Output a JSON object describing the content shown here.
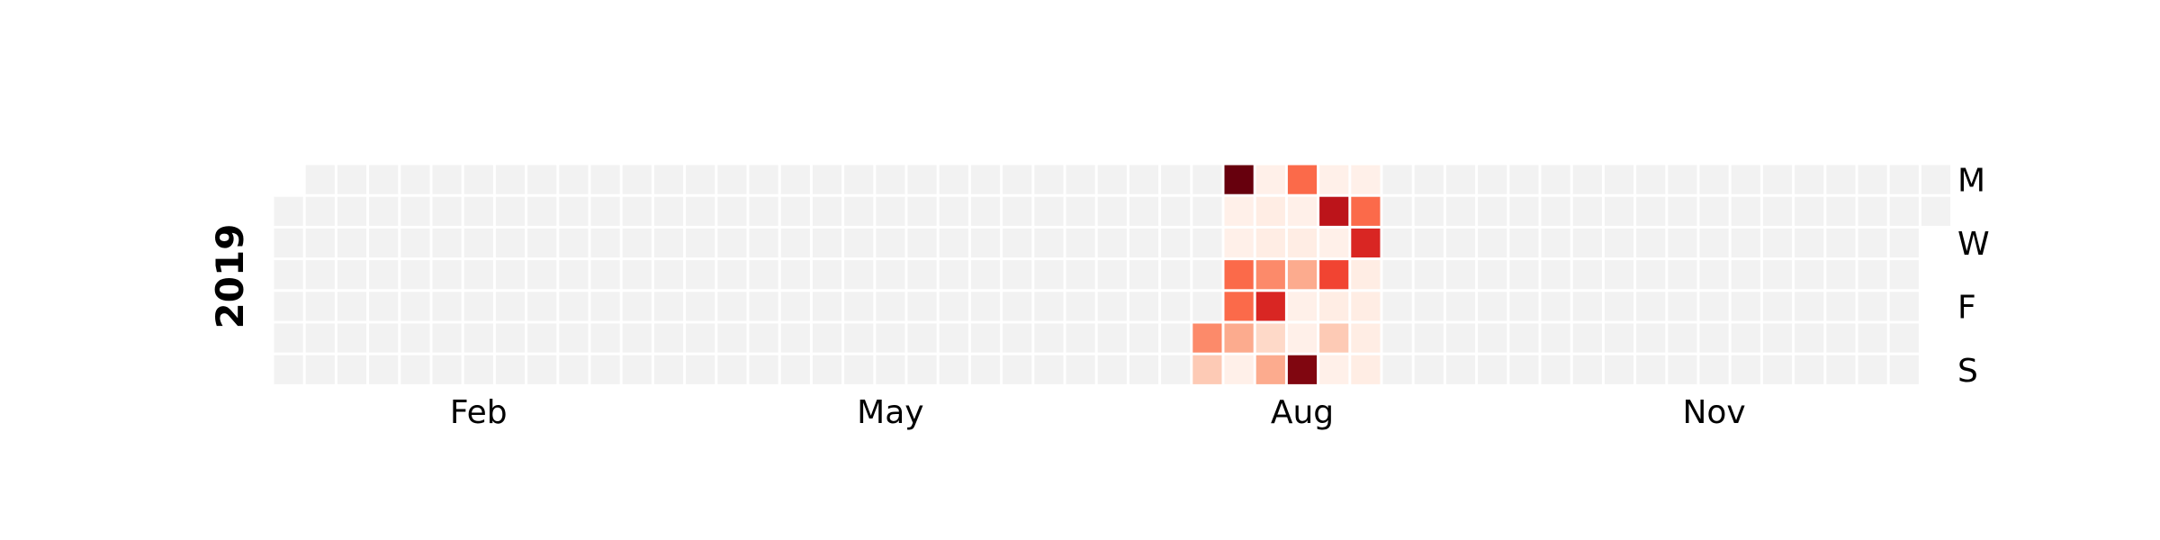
{
  "chart_data": {
    "type": "heatmap",
    "year": "2019",
    "month_labels": [
      "Feb",
      "May",
      "Aug",
      "Nov"
    ],
    "day_labels": [
      "M",
      "W",
      "F",
      "S"
    ],
    "empty_color": "#f2f2f2",
    "colormap": "Reds",
    "grid": false,
    "legend": "none",
    "values": [
      {
        "date": "2019-07-27",
        "value": 4
      },
      {
        "date": "2019-07-28",
        "value": 2
      },
      {
        "date": "2019-07-29",
        "value": 10
      },
      {
        "date": "2019-07-30",
        "value": 0.3
      },
      {
        "date": "2019-07-31",
        "value": 0.3
      },
      {
        "date": "2019-08-01",
        "value": 5
      },
      {
        "date": "2019-08-02",
        "value": 5
      },
      {
        "date": "2019-08-03",
        "value": 3
      },
      {
        "date": "2019-08-04",
        "value": 0.3
      },
      {
        "date": "2019-08-05",
        "value": 0.3
      },
      {
        "date": "2019-08-06",
        "value": 0.5
      },
      {
        "date": "2019-08-07",
        "value": 0.5
      },
      {
        "date": "2019-08-08",
        "value": 4
      },
      {
        "date": "2019-08-09",
        "value": 7
      },
      {
        "date": "2019-08-10",
        "value": 1.5
      },
      {
        "date": "2019-08-11",
        "value": 3
      },
      {
        "date": "2019-08-12",
        "value": 5
      },
      {
        "date": "2019-08-13",
        "value": 0.3
      },
      {
        "date": "2019-08-14",
        "value": 0.5
      },
      {
        "date": "2019-08-15",
        "value": 3
      },
      {
        "date": "2019-08-16",
        "value": 0.3
      },
      {
        "date": "2019-08-17",
        "value": 0.3
      },
      {
        "date": "2019-08-18",
        "value": 9.5
      },
      {
        "date": "2019-08-19",
        "value": 0.3
      },
      {
        "date": "2019-08-20",
        "value": 8
      },
      {
        "date": "2019-08-21",
        "value": 0.3
      },
      {
        "date": "2019-08-22",
        "value": 6
      },
      {
        "date": "2019-08-23",
        "value": 0.5
      },
      {
        "date": "2019-08-24",
        "value": 2
      },
      {
        "date": "2019-08-25",
        "value": 0.3
      },
      {
        "date": "2019-08-26",
        "value": 0.3
      },
      {
        "date": "2019-08-27",
        "value": 5
      },
      {
        "date": "2019-08-28",
        "value": 7
      },
      {
        "date": "2019-08-29",
        "value": 0.5
      },
      {
        "date": "2019-08-30",
        "value": 0.5
      },
      {
        "date": "2019-08-31",
        "value": 0.5
      },
      {
        "date": "2019-09-01",
        "value": 0.5
      }
    ]
  }
}
